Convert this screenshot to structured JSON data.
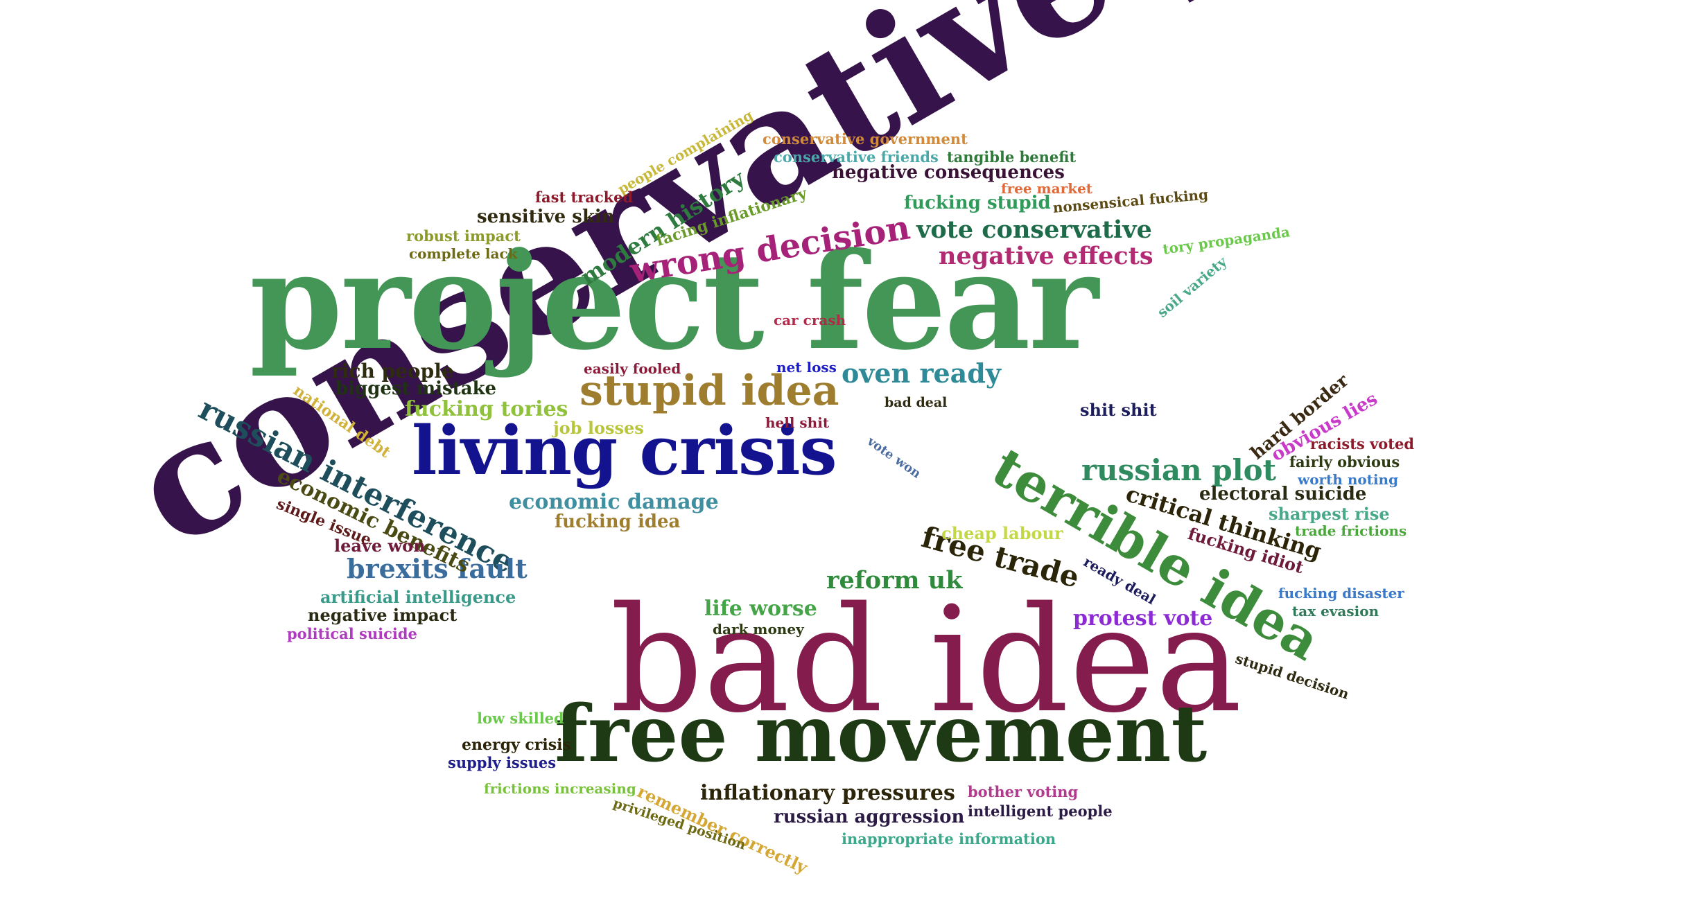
{
  "words": [
    {
      "text": "conservative party",
      "color": "#36134a"
    },
    {
      "text": "project fear",
      "color": "#439656"
    },
    {
      "text": "bad idea",
      "color": "#841d4d"
    },
    {
      "text": "free movement",
      "color": "#1e3a15"
    },
    {
      "text": "living crisis",
      "color": "#14138f"
    },
    {
      "text": "terrible idea",
      "color": "#3d8c3b"
    },
    {
      "text": "russian interference",
      "color": "#1e4e5c"
    },
    {
      "text": "stupid idea",
      "color": "#9e7d2e"
    },
    {
      "text": "wrong decision",
      "color": "#a62278"
    },
    {
      "text": "modern history",
      "color": "#2e7a3f"
    },
    {
      "text": "russian plot",
      "color": "#2f8a60"
    },
    {
      "text": "free trade",
      "color": "#2a2409"
    },
    {
      "text": "oven ready",
      "color": "#2d8a96"
    },
    {
      "text": "vote conservative",
      "color": "#1e6b4a"
    },
    {
      "text": "negative effects",
      "color": "#b12a72"
    },
    {
      "text": "critical thinking",
      "color": "#2b2409"
    },
    {
      "text": "brexits fault",
      "color": "#3a6c9c"
    },
    {
      "text": "reform uk",
      "color": "#2f8a3c"
    },
    {
      "text": "economic benefits",
      "color": "#4a4a14"
    },
    {
      "text": "economic damage",
      "color": "#3f8fa0"
    },
    {
      "text": "protest vote",
      "color": "#8c2bd4"
    },
    {
      "text": "life worse",
      "color": "#45a447"
    },
    {
      "text": "inflationary pressures",
      "color": "#2b2409"
    },
    {
      "text": "fucking tories",
      "color": "#8fc23a"
    },
    {
      "text": "negative consequences",
      "color": "#3a1236"
    },
    {
      "text": "fucking stupid",
      "color": "#2f9a5a"
    },
    {
      "text": "facing inflationary",
      "color": "#6a9a2a"
    },
    {
      "text": "rich people",
      "color": "#2e2c0f"
    },
    {
      "text": "biggest mistake",
      "color": "#1f3312"
    },
    {
      "text": "sensitive skin",
      "color": "#2f2a10"
    },
    {
      "text": "national debt",
      "color": "#d0b13a"
    },
    {
      "text": "job losses",
      "color": "#b9c63c"
    },
    {
      "text": "fucking idea",
      "color": "#9e7d2e"
    },
    {
      "text": "hard border",
      "color": "#3a2a14"
    },
    {
      "text": "obvious lies",
      "color": "#c83ac8"
    },
    {
      "text": "electoral suicide",
      "color": "#2a2a12"
    },
    {
      "text": "fucking idiot",
      "color": "#6e1a3a"
    },
    {
      "text": "shit shit",
      "color": "#1d1d5c"
    },
    {
      "text": "russian aggression",
      "color": "#2a1a44"
    },
    {
      "text": "remember correctly",
      "color": "#d4a634"
    },
    {
      "text": "cheap labour",
      "color": "#c4d846"
    },
    {
      "text": "leave won",
      "color": "#6e1a3a"
    },
    {
      "text": "single issue",
      "color": "#5c1a1a"
    },
    {
      "text": "artificial intelligence",
      "color": "#3a9a8a"
    },
    {
      "text": "negative impact",
      "color": "#2a2a12"
    },
    {
      "text": "political suicide",
      "color": "#b03ac0"
    },
    {
      "text": "sharpest rise",
      "color": "#4aa88a"
    },
    {
      "text": "racists voted",
      "color": "#8c1a2a"
    },
    {
      "text": "fairly obvious",
      "color": "#2e3a12"
    },
    {
      "text": "worth noting",
      "color": "#3a7ac8"
    },
    {
      "text": "trade frictions",
      "color": "#4aa83a"
    },
    {
      "text": "fucking disaster",
      "color": "#3a7ac8"
    },
    {
      "text": "tax evasion",
      "color": "#2f7a5a"
    },
    {
      "text": "stupid decision",
      "color": "#2e2a12"
    },
    {
      "text": "ready deal",
      "color": "#1d1d5c"
    },
    {
      "text": "energy crisis",
      "color": "#2b2409"
    },
    {
      "text": "supply issues",
      "color": "#1d1d8c"
    },
    {
      "text": "frictions increasing",
      "color": "#78c23a"
    },
    {
      "text": "privileged position",
      "color": "#6e6a14"
    },
    {
      "text": "low skilled",
      "color": "#6ac84a"
    },
    {
      "text": "dark money",
      "color": "#2e3a12"
    },
    {
      "text": "bother voting",
      "color": "#b03a8c"
    },
    {
      "text": "intelligent people",
      "color": "#2a1a44"
    },
    {
      "text": "inappropriate information",
      "color": "#3aa88a"
    },
    {
      "text": "people complaining",
      "color": "#c8b83a"
    },
    {
      "text": "conservative government",
      "color": "#d08a3a"
    },
    {
      "text": "conservative friends",
      "color": "#4aa8a8"
    },
    {
      "text": "tangible benefit",
      "color": "#2f7a3a"
    },
    {
      "text": "free market",
      "color": "#e06a3a"
    },
    {
      "text": "nonsensical fucking",
      "color": "#5c4a14"
    },
    {
      "text": "tory propaganda",
      "color": "#6ac84a"
    },
    {
      "text": "soil variety",
      "color": "#4aa88a"
    },
    {
      "text": "fast tracked",
      "color": "#8c1a2a"
    },
    {
      "text": "robust impact",
      "color": "#8c9a2a"
    },
    {
      "text": "complete lack",
      "color": "#6e6a14"
    },
    {
      "text": "car crash",
      "color": "#b02a4a"
    },
    {
      "text": "easily fooled",
      "color": "#8c1a3a"
    },
    {
      "text": "net loss",
      "color": "#1d1dc8"
    },
    {
      "text": "hell shit",
      "color": "#8c1a3a"
    },
    {
      "text": "bad deal",
      "color": "#2e2a12"
    },
    {
      "text": "vote won",
      "color": "#4a6aa0"
    }
  ]
}
